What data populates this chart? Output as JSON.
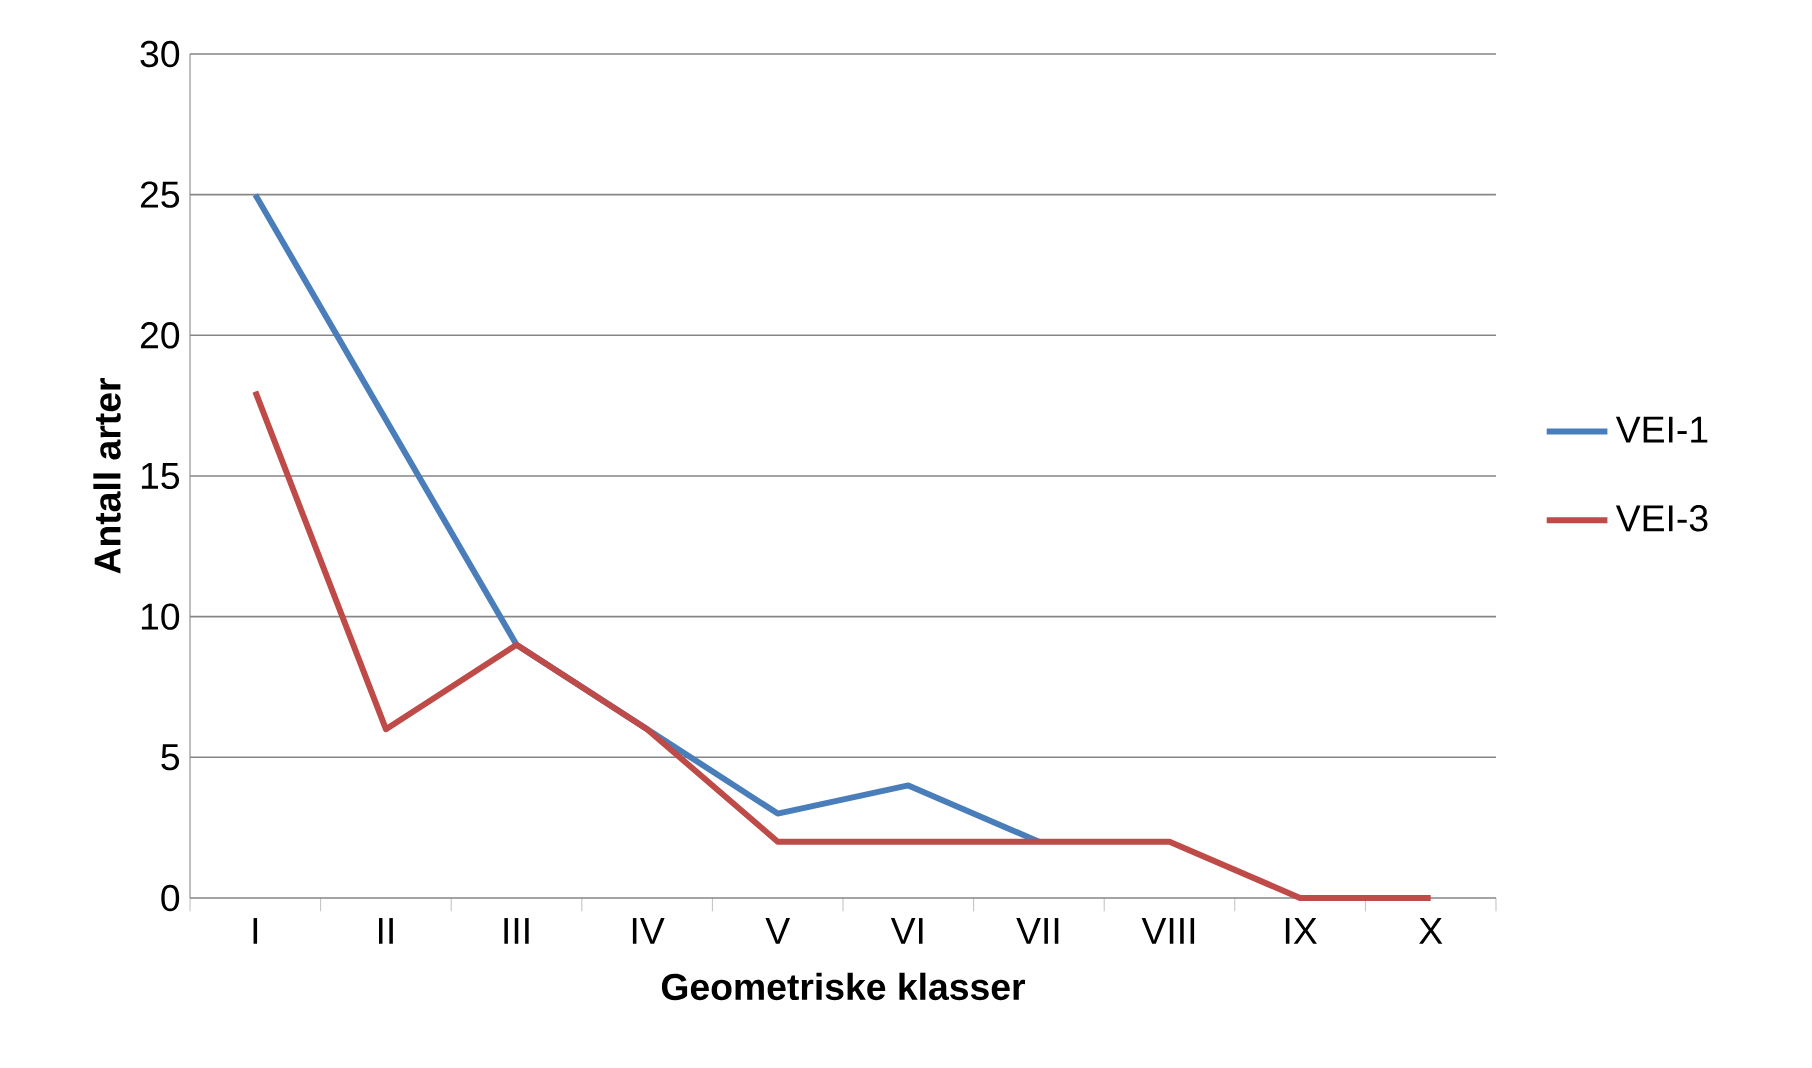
{
  "chart_data": {
    "type": "line",
    "xlabel": "Geometriske klasser",
    "ylabel": "Antall arter",
    "categories": [
      "I",
      "II",
      "III",
      "IV",
      "V",
      "VI",
      "VII",
      "VIII",
      "IX",
      "X"
    ],
    "series": [
      {
        "name": "VEI-1",
        "color": "#4a7ebb",
        "values": [
          25,
          17,
          9,
          6,
          3,
          4,
          2,
          null,
          null,
          null
        ]
      },
      {
        "name": "VEI-3",
        "color": "#be4b48",
        "values": [
          18,
          6,
          9,
          6,
          2,
          2,
          2,
          2,
          0,
          0
        ]
      }
    ],
    "ylim": [
      0,
      30
    ],
    "yticks": [
      0,
      5,
      10,
      15,
      20,
      25,
      30
    ],
    "grid": "y",
    "legend": "right"
  }
}
